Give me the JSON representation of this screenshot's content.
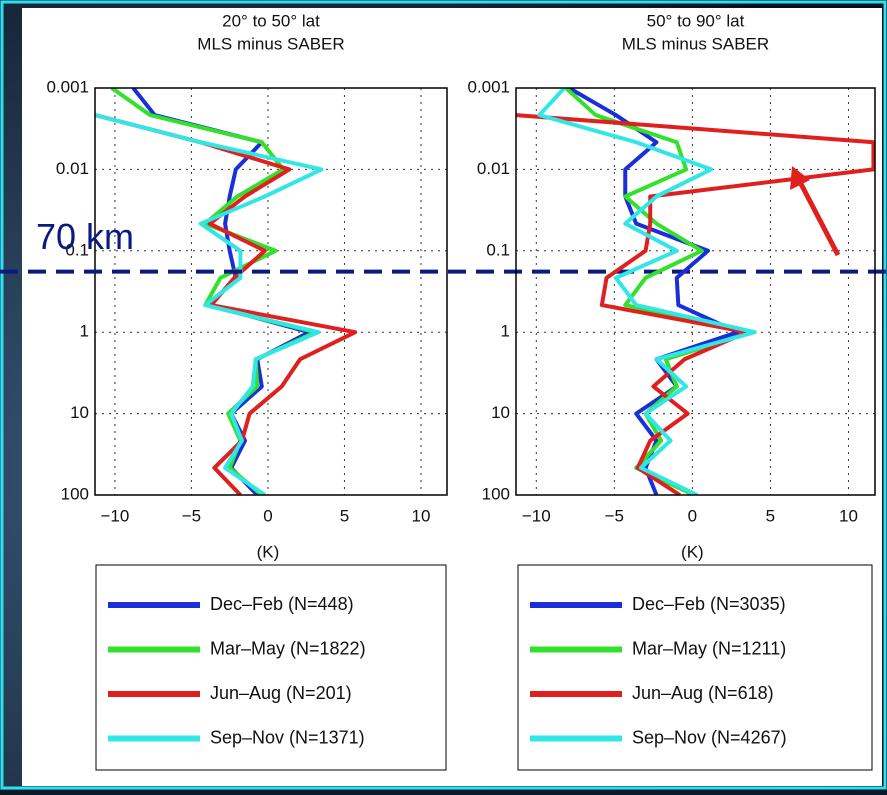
{
  "chart_data": [
    {
      "type": "line",
      "title": "20° to 50° lat",
      "subtitle": "MLS minus SABER",
      "x_label": "(K)",
      "xlim": [
        -11.3,
        11.7
      ],
      "ylim": [
        0.001,
        100
      ],
      "log_y": true,
      "y_inverted": true,
      "grid": true,
      "xticks": [
        {
          "value": -10,
          "label": "−10"
        },
        {
          "value": -5,
          "label": "−5"
        },
        0,
        5,
        10
      ],
      "yticks": [
        0.001,
        0.01,
        0.1,
        1,
        10,
        100
      ],
      "y": [
        0.001,
        0.00215,
        0.00464,
        0.01,
        0.0215,
        0.0464,
        0.1,
        0.215,
        0.464,
        1,
        2.15,
        4.64,
        10,
        21.5,
        46.4,
        100
      ],
      "series": [
        {
          "name": "Dec–Feb (N=448)",
          "color": "#1a2fd8",
          "values": [
            -8.8,
            -7.4,
            -0.4,
            -2.1,
            -2.5,
            -2.8,
            -2.5,
            -2.1,
            -3.8,
            2.7,
            -0.7,
            -0.4,
            -2.4,
            -1.5,
            -2.4,
            -0.7
          ]
        },
        {
          "name": "Mar–May (N=1822)",
          "color": "#33e02a",
          "values": [
            -10.2,
            -7.7,
            -0.4,
            1.0,
            -2.0,
            -4.1,
            0.5,
            -3.1,
            -4.1,
            3.1,
            -0.8,
            -0.7,
            -2.6,
            -1.8,
            -2.5,
            -0.4
          ]
        },
        {
          "name": "Jun–Aug (N=201)",
          "color": "#e01f1f",
          "values": [
            null,
            -11.3,
            -4.4,
            1.4,
            -1.5,
            -3.8,
            -0.2,
            -2.2,
            -3.7,
            5.7,
            2.1,
            0.9,
            -1.2,
            -1.7,
            -3.5,
            -1.8
          ]
        },
        {
          "name": "Sep–Nov (N=1371)",
          "color": "#33e6e6",
          "values": [
            null,
            -11.3,
            -4.4,
            3.5,
            -0.2,
            -4.4,
            -1.8,
            -1.8,
            -4.1,
            3.3,
            -0.8,
            -1.0,
            -2.4,
            -1.7,
            -2.8,
            -0.2
          ]
        }
      ],
      "hline": {
        "value": 0.18,
        "label": "70 km",
        "color": "#0a1a80"
      }
    },
    {
      "type": "line",
      "title": "50° to 90° lat",
      "subtitle": "MLS minus SABER",
      "x_label": "(K)",
      "xlim": [
        -11.3,
        11.7
      ],
      "ylim": [
        0.001,
        100
      ],
      "log_y": true,
      "y_inverted": true,
      "grid": true,
      "xticks": [
        {
          "value": -10,
          "label": "−10"
        },
        {
          "value": -5,
          "label": "−5"
        },
        0,
        5,
        10
      ],
      "yticks": [
        0.001,
        0.01,
        0.1,
        1,
        10,
        100
      ],
      "y": [
        0.001,
        0.00215,
        0.00464,
        0.01,
        0.0215,
        0.0464,
        0.1,
        0.215,
        0.464,
        1,
        2.15,
        4.64,
        10,
        21.5,
        46.4,
        100
      ],
      "series": [
        {
          "name": "Dec–Feb (N=3035)",
          "color": "#1a2fd8",
          "values": [
            -7.9,
            -4.9,
            -2.3,
            -4.3,
            -4.3,
            -3.6,
            1.0,
            -1.0,
            -0.9,
            2.9,
            -2.3,
            -1.0,
            -3.6,
            -2.3,
            -3.0,
            -2.3
          ]
        },
        {
          "name": "Mar–May (N=1211)",
          "color": "#33e02a",
          "values": [
            -8.1,
            -6.2,
            -1.0,
            -0.4,
            -4.3,
            -2.3,
            0.6,
            -3.0,
            -4.3,
            3.8,
            -1.7,
            -1.0,
            -3.0,
            -2.0,
            -3.6,
            0.1
          ]
        },
        {
          "name": "Jun–Aug (N=618)",
          "color": "#e01f1f",
          "values": [
            null,
            -11.3,
            11.6,
            11.6,
            -2.7,
            -2.7,
            -3.0,
            -5.5,
            -5.8,
            3.5,
            -0.5,
            -2.5,
            -0.3,
            -2.7,
            -3.5,
            -0.8
          ]
        },
        {
          "name": "Sep–Nov (N=4267)",
          "color": "#33e6e6",
          "values": [
            -8.2,
            -9.8,
            -3.6,
            1.2,
            -2.3,
            -4.3,
            -1.0,
            -4.9,
            -3.6,
            4.0,
            -2.3,
            -0.4,
            -3.0,
            -1.4,
            -3.3,
            0.3
          ]
        }
      ]
    }
  ]
}
